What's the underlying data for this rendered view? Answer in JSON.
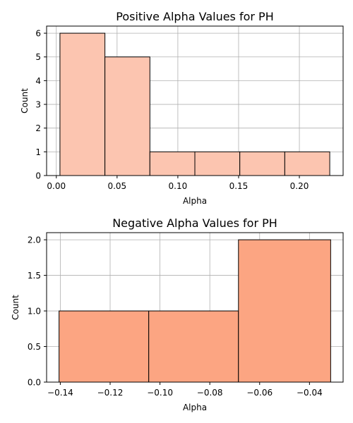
{
  "chart_data": [
    {
      "type": "bar",
      "title": "Positive Alpha Values for PH",
      "xlabel": "Alpha",
      "ylabel": "Count",
      "bins": [
        {
          "x0": 0.003,
          "x1": 0.04,
          "count": 6
        },
        {
          "x0": 0.04,
          "x1": 0.077,
          "count": 5
        },
        {
          "x0": 0.077,
          "x1": 0.114,
          "count": 1
        },
        {
          "x0": 0.114,
          "x1": 0.151,
          "count": 1
        },
        {
          "x0": 0.151,
          "x1": 0.188,
          "count": 1
        },
        {
          "x0": 0.188,
          "x1": 0.225,
          "count": 1
        }
      ],
      "xlim": [
        -0.008,
        0.236
      ],
      "ylim": [
        0,
        6.3
      ],
      "xticks": [
        0.0,
        0.05,
        0.1,
        0.15,
        0.2
      ],
      "xtick_labels": [
        "0.00",
        "0.05",
        "0.10",
        "0.15",
        "0.20"
      ],
      "yticks": [
        0,
        1,
        2,
        3,
        4,
        5,
        6
      ],
      "ytick_labels": [
        "0",
        "1",
        "2",
        "3",
        "4",
        "5",
        "6"
      ],
      "bar_color": "#fcc5b0",
      "grid": true
    },
    {
      "type": "bar",
      "title": "Negative Alpha Values for PH",
      "xlabel": "Alpha",
      "ylabel": "Count",
      "bins": [
        {
          "x0": -0.1405,
          "x1": -0.1045,
          "count": 1
        },
        {
          "x0": -0.1045,
          "x1": -0.0685,
          "count": 1
        },
        {
          "x0": -0.0685,
          "x1": -0.0315,
          "count": 2
        }
      ],
      "xlim": [
        -0.1455,
        -0.0265
      ],
      "ylim": [
        0,
        2.1
      ],
      "xticks": [
        -0.14,
        -0.12,
        -0.1,
        -0.08,
        -0.06,
        -0.04
      ],
      "xtick_labels": [
        "−0.14",
        "−0.12",
        "−0.10",
        "−0.08",
        "−0.06",
        "−0.04"
      ],
      "yticks": [
        0,
        0.5,
        1.0,
        1.5,
        2.0
      ],
      "ytick_labels": [
        "0.0",
        "0.5",
        "1.0",
        "1.5",
        "2.0"
      ],
      "bar_color": "#fca582",
      "grid": true
    }
  ]
}
